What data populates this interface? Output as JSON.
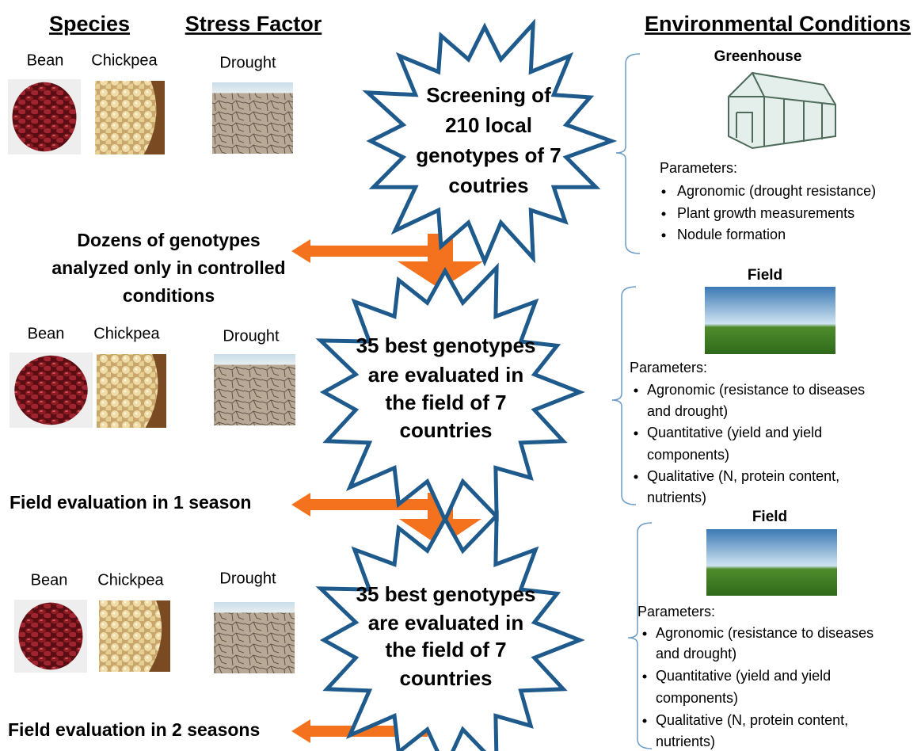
{
  "headers": {
    "species": "Species",
    "stress": "Stress Factor",
    "environment": "Environmental Conditions"
  },
  "stages": [
    {
      "species": [
        "Bean",
        "Chickpea"
      ],
      "stress": "Drought",
      "star": [
        "Screening of",
        "210 local",
        "genotypes of 7",
        "coutries"
      ],
      "environment": "Greenhouse",
      "parameters_title": "Parameters:",
      "parameters": [
        [
          "Agronomic (drought resistance)"
        ],
        [
          "Plant growth measurements"
        ],
        [
          "Nodule formation"
        ]
      ]
    },
    {
      "species": [
        "Bean",
        "Chickpea"
      ],
      "stress": "Drought",
      "star": [
        "35 best genotypes",
        "are evaluated in",
        "the field of 7",
        "countries"
      ],
      "environment": "Field",
      "parameters_title": "Parameters:",
      "parameters": [
        [
          "Agronomic (resistance to diseases",
          "and drought)"
        ],
        [
          "Quantitative (yield and yield",
          "components)"
        ],
        [
          "Qualitative (N, protein content,",
          "nutrients)"
        ]
      ]
    },
    {
      "species": [
        "Bean",
        "Chickpea"
      ],
      "stress": "Drought",
      "star": [
        "35 best genotypes",
        "are evaluated in",
        "the field of 7",
        "countries"
      ],
      "environment": "Field",
      "parameters_title": "Parameters:",
      "parameters": [
        [
          "Agronomic (resistance to diseases",
          "and drought)"
        ],
        [
          "Quantitative (yield and yield",
          "components)"
        ],
        [
          "Qualitative (N, protein content,",
          "nutrients)"
        ]
      ]
    }
  ],
  "outcomes": [
    [
      "Dozens of genotypes",
      "analyzed only in controlled",
      "conditions"
    ],
    [
      "Field evaluation in 1 season"
    ],
    [
      "Field evaluation in 2 seasons"
    ]
  ]
}
